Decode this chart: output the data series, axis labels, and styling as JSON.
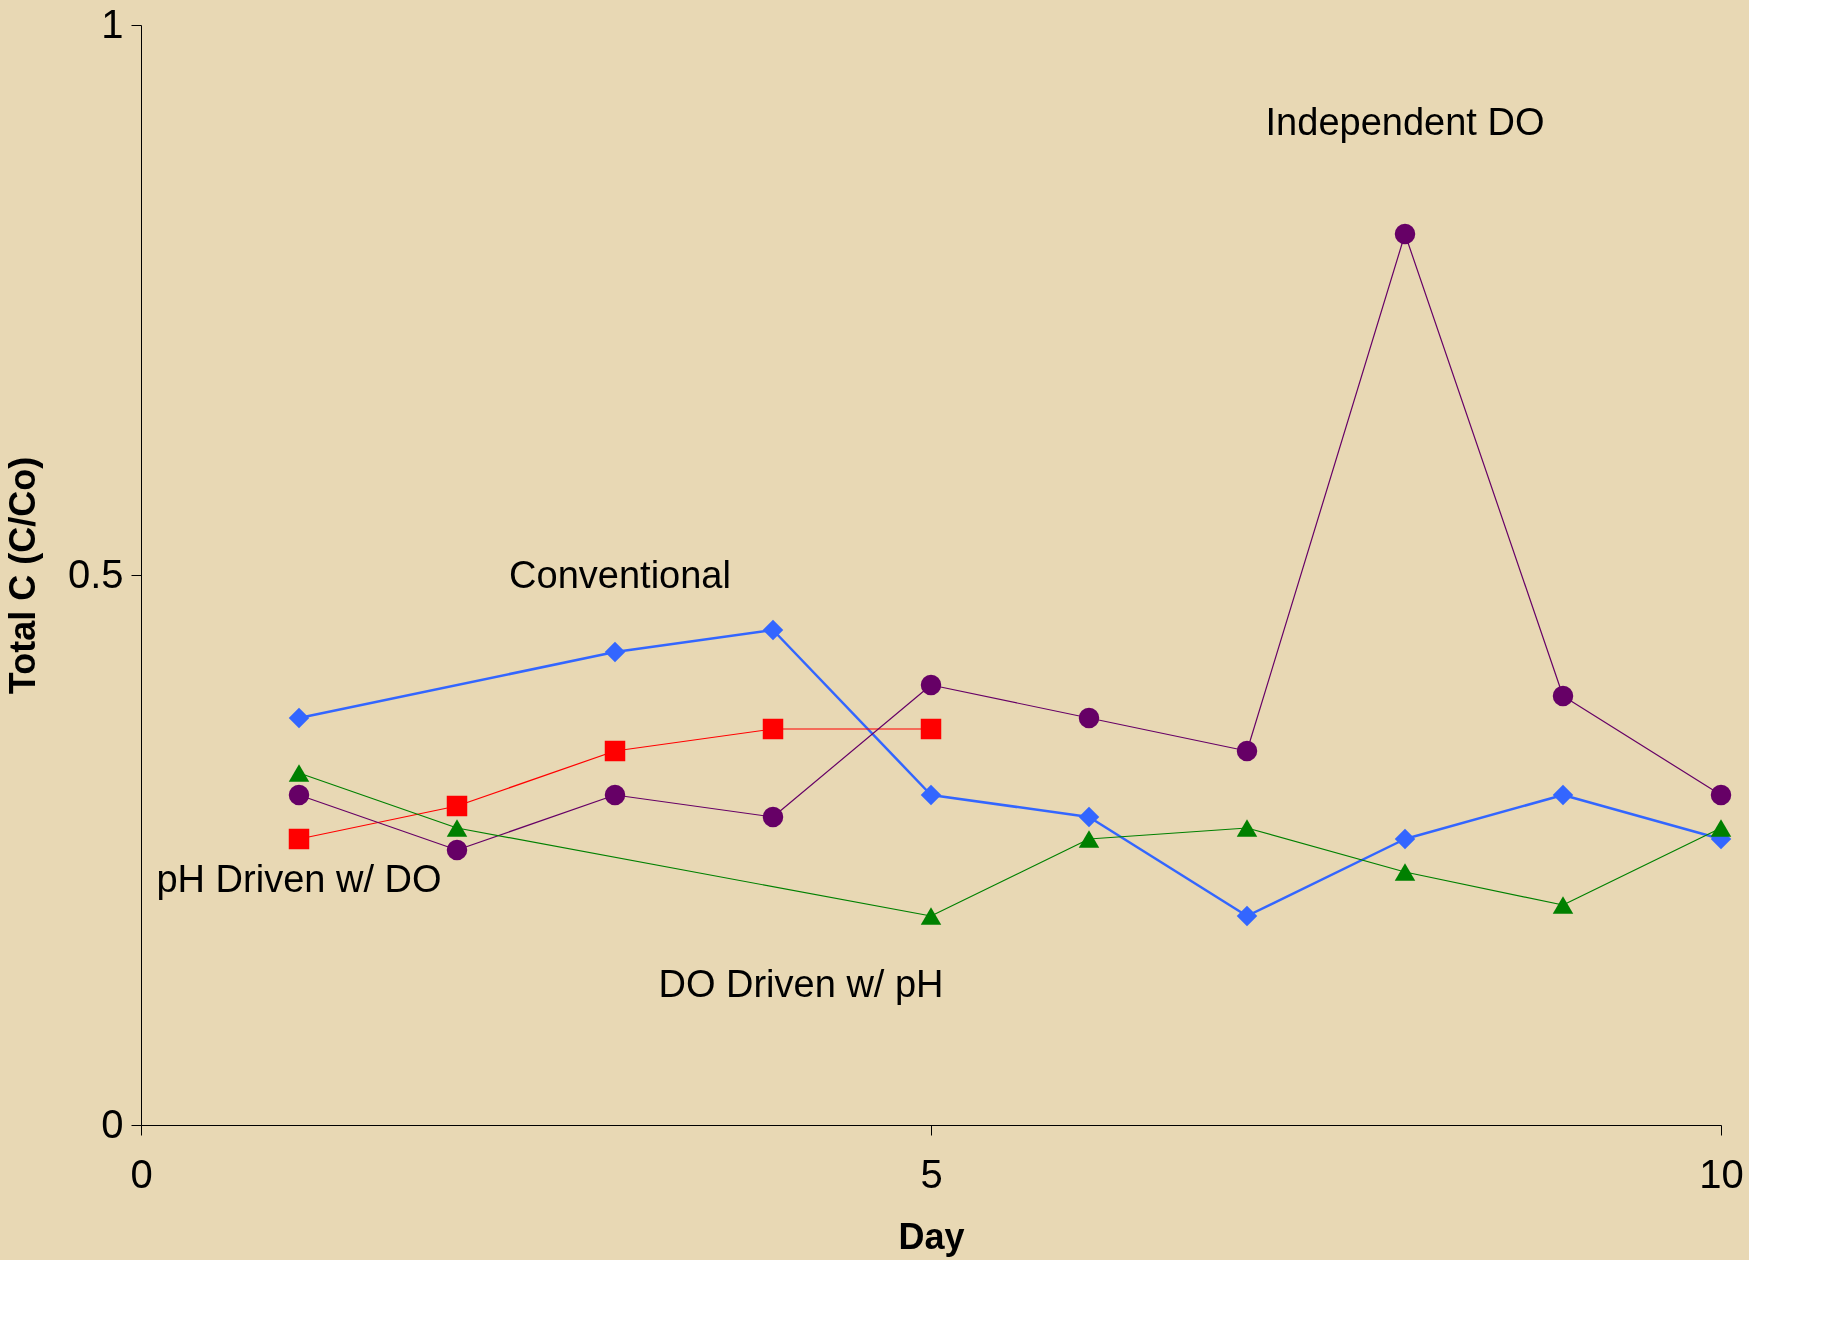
{
  "chart_data": {
    "type": "line",
    "xlabel": "Day",
    "ylabel": "Total C (C/Co)",
    "xlim": [
      0,
      10
    ],
    "xticks": [
      0,
      5,
      10
    ],
    "ylim": [
      0,
      1
    ],
    "yticks": [
      0,
      0.5,
      1
    ],
    "grid": false,
    "series": [
      {
        "name": "Conventional",
        "color": "#3366ff",
        "marker": "diamond",
        "x": [
          1,
          3,
          4,
          5,
          6,
          7,
          8,
          9,
          10
        ],
        "values": [
          0.37,
          0.43,
          0.45,
          0.3,
          0.28,
          0.19,
          0.26,
          0.3,
          0.26
        ]
      },
      {
        "name": "pH Driven w/ DO",
        "color": "#ff0000",
        "marker": "square",
        "x": [
          1,
          2,
          3,
          4,
          5
        ],
        "values": [
          0.26,
          0.29,
          0.34,
          0.36,
          0.36
        ]
      },
      {
        "name": "Independent DO",
        "color": "#660066",
        "marker": "circle",
        "x": [
          1,
          2,
          3,
          4,
          5,
          6,
          7,
          8,
          9,
          10
        ],
        "values": [
          0.3,
          0.25,
          0.3,
          0.28,
          0.4,
          0.37,
          0.34,
          0.81,
          0.39,
          0.3
        ]
      },
      {
        "name": "DO Driven w/ pH",
        "color": "#008000",
        "marker": "triangle",
        "x": [
          1,
          2,
          5,
          6,
          7,
          8,
          9,
          10
        ],
        "values": [
          0.32,
          0.27,
          0.19,
          0.26,
          0.27,
          0.23,
          0.2,
          0.27
        ]
      }
    ]
  }
}
